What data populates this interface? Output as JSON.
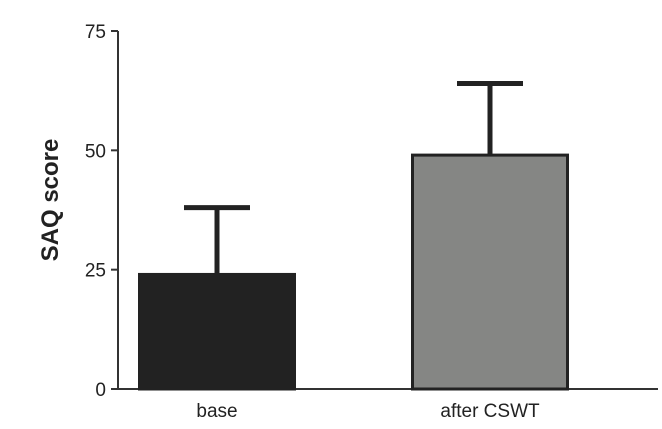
{
  "chart_data": {
    "type": "bar",
    "title": "",
    "xlabel": "",
    "ylabel": "SAQ score",
    "ylim": [
      0,
      75
    ],
    "yticks": [
      0,
      25,
      50,
      75
    ],
    "ytick_labels": [
      "0",
      "25",
      "50",
      "75"
    ],
    "categories": [
      "base",
      "after CSWT"
    ],
    "values": [
      24,
      49
    ],
    "error_upper": [
      38,
      64
    ],
    "colors": [
      "#222222",
      "#858684"
    ],
    "edge_color": "#222222",
    "grid": false,
    "legend": "none"
  }
}
